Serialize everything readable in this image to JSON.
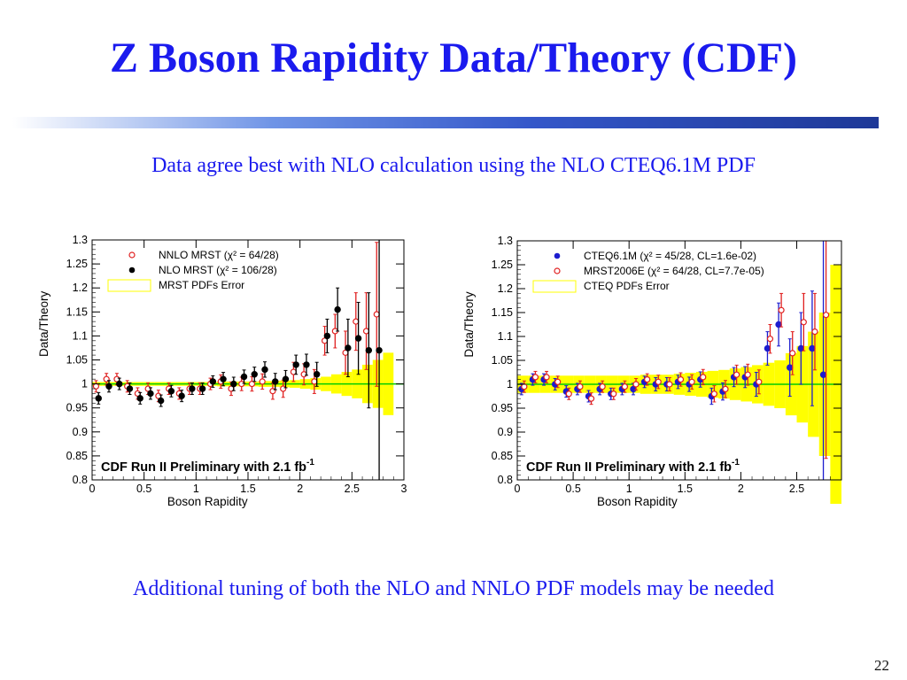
{
  "slide": {
    "title": "Z Boson Rapidity Data/Theory (CDF)",
    "subtitle": "Data agree best with NLO calculation using the NLO CTEQ6.1M PDF",
    "footer": "Additional tuning of both the NLO and NNLO PDF models may be needed",
    "page_number": "22"
  },
  "colors": {
    "title": "#1a1aee",
    "band": "#ffff00",
    "theory_line": "#00cc00",
    "red": "#e02020",
    "black": "#000000",
    "blue": "#1c1ccf"
  },
  "chart_data": [
    {
      "type": "scatter",
      "xlabel": "Boson Rapidity",
      "ylabel": "Data/Theory",
      "xlim": [
        0,
        3
      ],
      "ylim": [
        0.8,
        1.3
      ],
      "x_ticks": [
        "0",
        "0.5",
        "1",
        "1.5",
        "2",
        "2.5",
        "3"
      ],
      "y_ticks": [
        "0.8",
        "0.85",
        "0.9",
        "0.95",
        "1",
        "1.05",
        "1.1",
        "1.15",
        "1.2",
        "1.25",
        "1.3"
      ],
      "annotation": "CDF Run II Preliminary with 2.1 fb",
      "annotation_sup": "-1",
      "legend": [
        {
          "marker": "open-circle",
          "color": "#e02020",
          "label": "NNLO MRST (χ² = 64/28)"
        },
        {
          "marker": "filled-circle",
          "color": "#000000",
          "label": "NLO MRST (χ² = 106/28)"
        },
        {
          "marker": "box",
          "color": "#ffff00",
          "label": "MRST PDFs Error"
        }
      ],
      "band": {
        "x": [
          0.05,
          0.15,
          0.25,
          0.35,
          0.45,
          0.55,
          0.65,
          0.75,
          0.85,
          0.95,
          1.05,
          1.15,
          1.25,
          1.35,
          1.45,
          1.55,
          1.65,
          1.75,
          1.85,
          1.95,
          2.05,
          2.15,
          2.25,
          2.35,
          2.45,
          2.55,
          2.65,
          2.75,
          2.85
        ],
        "halfwidth": [
          0.004,
          0.004,
          0.004,
          0.004,
          0.004,
          0.004,
          0.004,
          0.004,
          0.004,
          0.004,
          0.004,
          0.004,
          0.005,
          0.005,
          0.005,
          0.005,
          0.006,
          0.006,
          0.007,
          0.008,
          0.01,
          0.012,
          0.015,
          0.02,
          0.025,
          0.03,
          0.04,
          0.05,
          0.065
        ]
      },
      "series": [
        {
          "name": "NNLO MRST (χ² = 64/28)",
          "marker": "open-circle",
          "color": "#e02020",
          "x": [
            0.05,
            0.15,
            0.25,
            0.35,
            0.45,
            0.55,
            0.65,
            0.75,
            0.85,
            0.95,
            1.05,
            1.15,
            1.25,
            1.35,
            1.45,
            1.55,
            1.65,
            1.75,
            1.85,
            1.95,
            2.05,
            2.15,
            2.25,
            2.35,
            2.45,
            2.55,
            2.65,
            2.75
          ],
          "y": [
            0.995,
            1.01,
            1.01,
            0.995,
            0.98,
            0.99,
            0.975,
            0.99,
            0.98,
            0.99,
            0.99,
            1.0,
            1.005,
            0.99,
            1.0,
            1.0,
            1.005,
            0.985,
            0.99,
            1.025,
            1.02,
            1.005,
            1.09,
            1.11,
            1.065,
            1.13,
            1.11,
            1.145
          ],
          "err": [
            0.012,
            0.012,
            0.012,
            0.012,
            0.012,
            0.012,
            0.012,
            0.012,
            0.012,
            0.012,
            0.012,
            0.012,
            0.014,
            0.014,
            0.014,
            0.015,
            0.016,
            0.017,
            0.018,
            0.02,
            0.022,
            0.025,
            0.03,
            0.035,
            0.045,
            0.06,
            0.08,
            0.15
          ]
        },
        {
          "name": "NLO MRST (χ² = 106/28)",
          "marker": "filled-circle",
          "color": "#000000",
          "x": [
            0.05,
            0.15,
            0.25,
            0.35,
            0.45,
            0.55,
            0.65,
            0.75,
            0.85,
            0.95,
            1.05,
            1.15,
            1.25,
            1.35,
            1.45,
            1.55,
            1.65,
            1.75,
            1.85,
            1.95,
            2.05,
            2.15,
            2.25,
            2.35,
            2.45,
            2.55,
            2.65,
            2.75
          ],
          "y": [
            0.97,
            0.995,
            1.0,
            0.99,
            0.97,
            0.98,
            0.965,
            0.985,
            0.975,
            0.99,
            0.99,
            1.005,
            1.01,
            1.0,
            1.015,
            1.02,
            1.03,
            1.005,
            1.01,
            1.04,
            1.04,
            1.02,
            1.1,
            1.155,
            1.075,
            1.095,
            1.07,
            1.07
          ],
          "err": [
            0.012,
            0.012,
            0.012,
            0.012,
            0.012,
            0.012,
            0.012,
            0.012,
            0.012,
            0.012,
            0.012,
            0.012,
            0.014,
            0.014,
            0.014,
            0.015,
            0.016,
            0.017,
            0.018,
            0.02,
            0.022,
            0.025,
            0.035,
            0.045,
            0.06,
            0.075,
            0.12,
            0.3
          ]
        }
      ]
    },
    {
      "type": "scatter",
      "xlabel": "Boson Rapidity",
      "ylabel": "Data/Theory",
      "xlim": [
        0,
        2.9
      ],
      "ylim": [
        0.8,
        1.3
      ],
      "x_ticks": [
        "0",
        "0.5",
        "1",
        "1.5",
        "2",
        "2.5"
      ],
      "y_ticks": [
        "0.8",
        "0.85",
        "0.9",
        "0.95",
        "1",
        "1.05",
        "1.1",
        "1.15",
        "1.2",
        "1.25",
        "1.3"
      ],
      "annotation": "CDF Run II Preliminary with 2.1 fb",
      "annotation_sup": "-1",
      "legend": [
        {
          "marker": "filled-circle",
          "color": "#1c1ccf",
          "label": "CTEQ6.1M (χ² = 45/28, CL=1.6e-02)"
        },
        {
          "marker": "open-circle",
          "color": "#e02020",
          "label": "MRST2006E (χ² = 64/28, CL=7.7e-05)"
        },
        {
          "marker": "box",
          "color": "#ffff00",
          "label": "CTEQ PDFs Error"
        }
      ],
      "band": {
        "x": [
          0.05,
          0.15,
          0.25,
          0.35,
          0.45,
          0.55,
          0.65,
          0.75,
          0.85,
          0.95,
          1.05,
          1.15,
          1.25,
          1.35,
          1.45,
          1.55,
          1.65,
          1.75,
          1.85,
          1.95,
          2.05,
          2.15,
          2.25,
          2.35,
          2.45,
          2.55,
          2.65,
          2.75,
          2.85
        ],
        "halfwidth": [
          0.018,
          0.018,
          0.018,
          0.018,
          0.018,
          0.018,
          0.018,
          0.018,
          0.018,
          0.018,
          0.018,
          0.02,
          0.02,
          0.02,
          0.022,
          0.024,
          0.026,
          0.028,
          0.03,
          0.033,
          0.036,
          0.04,
          0.045,
          0.05,
          0.065,
          0.08,
          0.11,
          0.15,
          0.25
        ]
      },
      "series": [
        {
          "name": "CTEQ6.1M (χ² = 45/28, CL=1.6e-02)",
          "marker": "filled-circle",
          "color": "#1c1ccf",
          "x": [
            0.05,
            0.15,
            0.25,
            0.35,
            0.45,
            0.55,
            0.65,
            0.75,
            0.85,
            0.95,
            1.05,
            1.15,
            1.25,
            1.35,
            1.45,
            1.55,
            1.65,
            1.75,
            1.85,
            1.95,
            2.05,
            2.15,
            2.25,
            2.35,
            2.45,
            2.55,
            2.65,
            2.75
          ],
          "y": [
            0.99,
            1.01,
            1.01,
            1.0,
            0.985,
            0.99,
            0.975,
            0.99,
            0.98,
            0.99,
            0.99,
            1.005,
            1.0,
            1.0,
            1.005,
            1.0,
            1.01,
            0.975,
            0.985,
            1.015,
            1.015,
            1.0,
            1.075,
            1.125,
            1.035,
            1.075,
            1.075,
            1.02
          ],
          "err": [
            0.012,
            0.012,
            0.012,
            0.012,
            0.012,
            0.012,
            0.012,
            0.012,
            0.012,
            0.012,
            0.012,
            0.012,
            0.014,
            0.014,
            0.014,
            0.015,
            0.016,
            0.017,
            0.018,
            0.02,
            0.022,
            0.025,
            0.035,
            0.045,
            0.06,
            0.075,
            0.12,
            0.3
          ]
        },
        {
          "name": "MRST2006E (χ² = 64/28, CL=7.7e-05)",
          "marker": "open-circle",
          "color": "#e02020",
          "x": [
            0.05,
            0.15,
            0.25,
            0.35,
            0.45,
            0.55,
            0.65,
            0.75,
            0.85,
            0.95,
            1.05,
            1.15,
            1.25,
            1.35,
            1.45,
            1.55,
            1.65,
            1.75,
            1.85,
            1.95,
            2.05,
            2.15,
            2.25,
            2.35,
            2.45,
            2.55,
            2.65,
            2.75
          ],
          "y": [
            0.995,
            1.015,
            1.015,
            1.005,
            0.98,
            0.995,
            0.97,
            0.995,
            0.98,
            0.995,
            1.0,
            1.01,
            1.005,
            1.0,
            1.01,
            1.005,
            1.015,
            0.98,
            0.99,
            1.02,
            1.02,
            1.005,
            1.095,
            1.155,
            1.065,
            1.13,
            1.11,
            1.145
          ],
          "err": [
            0.012,
            0.012,
            0.012,
            0.012,
            0.012,
            0.012,
            0.012,
            0.012,
            0.012,
            0.012,
            0.012,
            0.012,
            0.014,
            0.014,
            0.014,
            0.015,
            0.016,
            0.017,
            0.018,
            0.02,
            0.022,
            0.025,
            0.03,
            0.035,
            0.045,
            0.06,
            0.08,
            0.3
          ]
        }
      ]
    }
  ]
}
